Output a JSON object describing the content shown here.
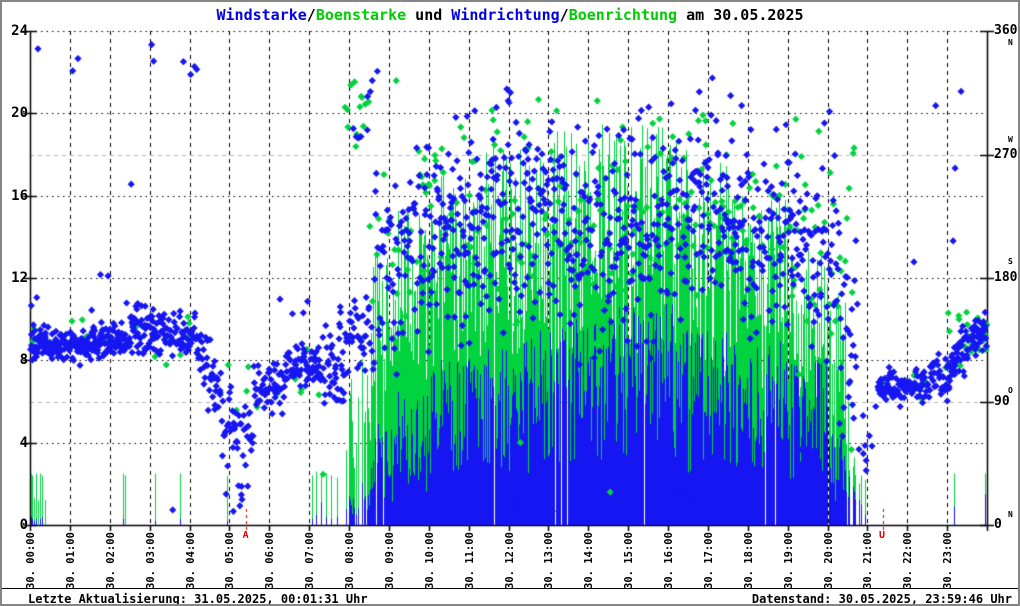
{
  "title": {
    "parts": [
      {
        "text": "Windstarke",
        "color": "#0202e0"
      },
      {
        "text": "/",
        "color": "#000000"
      },
      {
        "text": "Boenstarke",
        "color": "#00cc00"
      },
      {
        "text": " und ",
        "color": "#000000"
      },
      {
        "text": "Windrichtung",
        "color": "#0202e0"
      },
      {
        "text": "/",
        "color": "#000000"
      },
      {
        "text": "Boenrichtung",
        "color": "#00cc00"
      },
      {
        "text": " am 30.05.2025",
        "color": "#000000"
      }
    ]
  },
  "footer": {
    "left": "Letzte Aktualisierung: 31.05.2025, 00:01:31 Uhr",
    "right": "Datenstand: 30.05.2025, 23:59:46 Uhr"
  },
  "chart_data": {
    "type": "mixed",
    "title": "Windstarke/Boenstarke und Windrichtung/Boenrichtung am 30.05.2025",
    "colors": {
      "wind": "#1616f2",
      "gust": "#00d33e",
      "grid": "#000000",
      "grid_minor": "#b8b8b8",
      "sun": "#e00000"
    },
    "series": [
      {
        "name": "Windstarke",
        "style": "impulses",
        "axis": "left",
        "color": "#1616f2"
      },
      {
        "name": "Boenstarke",
        "style": "impulses",
        "axis": "left",
        "color": "#00d33e"
      },
      {
        "name": "Windrichtung",
        "style": "points",
        "axis": "right",
        "color": "#1616f2"
      },
      {
        "name": "Boenrichtung",
        "style": "points",
        "axis": "right",
        "color": "#00d33e"
      }
    ],
    "left_axis": {
      "min": 0,
      "max": 24,
      "ticks": [
        0,
        4,
        8,
        12,
        16,
        20,
        24
      ]
    },
    "right_axis": {
      "min": 0,
      "max": 360,
      "ticks": [
        0,
        90,
        180,
        270,
        360
      ],
      "gridlines": [
        90,
        270
      ],
      "compass": [
        {
          "label": "N",
          "deg": 360
        },
        {
          "label": "W",
          "deg": 270
        },
        {
          "label": "S",
          "deg": 180
        },
        {
          "label": "O",
          "deg": 90
        },
        {
          "label": "N",
          "deg": 0
        }
      ]
    },
    "x_labels": [
      "30. 00:00",
      "30. 01:00",
      "30. 02:00",
      "30. 03:00",
      "30. 04:00",
      "30. 05:00",
      "30. 06:00",
      "30. 07:00",
      "30. 08:00",
      "30. 09:00",
      "30. 10:00",
      "30. 11:00",
      "30. 12:00",
      "30. 13:00",
      "30. 14:00",
      "30. 15:00",
      "30. 16:00",
      "30. 17:00",
      "30. 18:00",
      "30. 19:00",
      "30. 20:00",
      "30. 21:00",
      "30. 22:00",
      "30. 23:00"
    ],
    "sun_markers": [
      {
        "label": "A",
        "hour": 5.42
      },
      {
        "label": "U",
        "hour": 21.38
      }
    ],
    "segment_format": {
      "wind_gust_segments": "[fromHour, toHour, windMin, windMax, gustMin, gustMax, densityPerMinute]",
      "gust_spikes": "[hour, gustValue, windValue]",
      "wind_dir_segments": "[fromHour, toHour, centerDeg, centerDegEnd|null, spreadDeg, densityPerMinute, outlierRate, outlierLoDeg, outlierHiDeg]",
      "gust_dir_segments": "[fromHour, toHour, centerDeg, centerDegEnd|null, spreadDeg, densityPerMinute]",
      "extra_points": "[hour, deg]"
    },
    "wind_gust_segments": [
      [
        7.9,
        8.3,
        0.2,
        1.5,
        2.5,
        8.5,
        0.5
      ],
      [
        8.3,
        8.6,
        0.5,
        3.0,
        4.0,
        10.0,
        0.7
      ],
      [
        8.6,
        9.2,
        1.0,
        5.0,
        6.0,
        13.5,
        0.9
      ],
      [
        9.2,
        10.0,
        1.5,
        6.5,
        7.0,
        15.5,
        1
      ],
      [
        10.0,
        11.0,
        2.0,
        8.0,
        7.5,
        17.0,
        1
      ],
      [
        11.0,
        12.5,
        2.5,
        9.0,
        8.0,
        18.5,
        1
      ],
      [
        12.5,
        14.5,
        3.0,
        10.0,
        8.0,
        19.8,
        1
      ],
      [
        14.5,
        16.5,
        3.0,
        10.8,
        8.0,
        19.5,
        1
      ],
      [
        16.5,
        17.5,
        2.5,
        9.5,
        7.0,
        17.8,
        1
      ],
      [
        17.5,
        19.0,
        2.5,
        9.0,
        6.5,
        16.0,
        1
      ],
      [
        19.0,
        20.0,
        2.0,
        8.0,
        5.0,
        13.5,
        1
      ],
      [
        20.0,
        20.45,
        1.0,
        5.0,
        3.0,
        11.5,
        0.9
      ],
      [
        20.45,
        20.8,
        0.3,
        2.5,
        1.5,
        6.0,
        0.5
      ]
    ],
    "gust_spikes": [
      [
        0.03,
        2.5,
        0.4
      ],
      [
        0.06,
        2.4,
        0.3
      ],
      [
        0.1,
        1.3,
        0.2
      ],
      [
        0.14,
        2.5,
        0.3
      ],
      [
        0.19,
        1.2,
        0
      ],
      [
        0.24,
        2.5,
        0.3
      ],
      [
        0.31,
        2.4,
        0.4
      ],
      [
        0.37,
        1.2,
        0
      ],
      [
        2.33,
        2.5,
        0.3
      ],
      [
        2.38,
        2.4,
        0
      ],
      [
        3.13,
        2.5,
        0.2
      ],
      [
        3.76,
        2.5,
        0.3
      ],
      [
        4.93,
        2.4,
        0.2
      ],
      [
        7.08,
        2.4,
        0.3
      ],
      [
        7.17,
        2.6,
        0.5
      ],
      [
        7.3,
        2.4,
        1.1
      ],
      [
        7.42,
        2.5,
        0.4
      ],
      [
        7.55,
        2.4,
        0.3
      ],
      [
        7.7,
        2.3,
        0.4
      ],
      [
        20.85,
        2.4,
        1.0
      ],
      [
        20.95,
        2.2,
        0.5
      ],
      [
        23.18,
        2.5,
        0.9
      ],
      [
        23.95,
        2.5,
        1.5
      ]
    ],
    "wind_dir_segments": [
      [
        0,
        0.5,
        133,
        null,
        9,
        1.6,
        0.04,
        150,
        175
      ],
      [
        0.5,
        1.5,
        131,
        null,
        8,
        1.6,
        0.02,
        300,
        345
      ],
      [
        1.5,
        2.5,
        133,
        null,
        10,
        1.6,
        0.03,
        155,
        215
      ],
      [
        2.5,
        3.3,
        141,
        null,
        13,
        1.4,
        0.03,
        200,
        345
      ],
      [
        3.3,
        4.2,
        138,
        null,
        14,
        1.2,
        0.02,
        320,
        350
      ],
      [
        4.2,
        4.85,
        125,
        85,
        18,
        1.1,
        0.03,
        30,
        55
      ],
      [
        4.85,
        5.6,
        72,
        null,
        20,
        1.0,
        0.08,
        8,
        40
      ],
      [
        5.6,
        6.4,
        102,
        null,
        14,
        1.1,
        0.02,
        140,
        165
      ],
      [
        6.4,
        7.3,
        117,
        null,
        11,
        1.3,
        0.02,
        145,
        165
      ],
      [
        7.3,
        7.9,
        113,
        null,
        32,
        1.3,
        0,
        0,
        0
      ],
      [
        7.9,
        8.6,
        142,
        null,
        24,
        1.2,
        0.15,
        280,
        345
      ],
      [
        8.6,
        9.5,
        195,
        null,
        52,
        1.0,
        0.05,
        330,
        358
      ],
      [
        9.5,
        11.0,
        215,
        null,
        56,
        1.1,
        0,
        0,
        0
      ],
      [
        11.0,
        13.5,
        225,
        null,
        60,
        1.15,
        0,
        0,
        0
      ],
      [
        13.5,
        16.0,
        212,
        null,
        62,
        1.15,
        0.02,
        5,
        40
      ],
      [
        16.0,
        18.0,
        232,
        null,
        55,
        1.1,
        0.02,
        10,
        45
      ],
      [
        18.0,
        19.5,
        215,
        null,
        55,
        1.05,
        0,
        0,
        0
      ],
      [
        19.5,
        20.3,
        195,
        null,
        58,
        1.0,
        0,
        0,
        0
      ],
      [
        20.3,
        20.75,
        140,
        null,
        55,
        0.9,
        0,
        0,
        0
      ],
      [
        20.75,
        21.25,
        80,
        null,
        32,
        0.25,
        0,
        0,
        0
      ],
      [
        21.25,
        22.6,
        102,
        null,
        9,
        1.1,
        0.03,
        140,
        230
      ],
      [
        22.6,
        23.1,
        108,
        null,
        12,
        1.1,
        0.05,
        260,
        330
      ],
      [
        23.1,
        24.0,
        122,
        142,
        13,
        1.3,
        0.02,
        170,
        210
      ]
    ],
    "gust_dir_segments": [
      [
        0,
        4.2,
        135,
        null,
        13,
        0.07
      ],
      [
        4.85,
        7.3,
        105,
        null,
        18,
        0.06
      ],
      [
        7.9,
        8.5,
        300,
        null,
        18,
        0.3
      ],
      [
        8.5,
        11.0,
        228,
        null,
        54,
        0.3
      ],
      [
        11.0,
        16.0,
        224,
        null,
        60,
        0.35
      ],
      [
        16.0,
        19.0,
        234,
        null,
        55,
        0.33
      ],
      [
        19.0,
        20.75,
        200,
        null,
        60,
        0.3
      ],
      [
        21.3,
        23.0,
        103,
        null,
        10,
        0.06
      ],
      [
        23.0,
        24.0,
        136,
        null,
        14,
        0.5
      ]
    ],
    "extra_wind_dir_points": [
      [
        3.58,
        11
      ],
      [
        0.2,
        347
      ],
      [
        1.07,
        331
      ],
      [
        3.05,
        350
      ],
      [
        3.1,
        338
      ],
      [
        5.1,
        10
      ],
      [
        5.3,
        22
      ],
      [
        20.9,
        52
      ],
      [
        20.97,
        47
      ],
      [
        21.05,
        65
      ],
      [
        23.15,
        207
      ],
      [
        23.2,
        260
      ],
      [
        23.35,
        316
      ],
      [
        12.2,
        15
      ],
      [
        13.1,
        10
      ],
      [
        14.9,
        20
      ],
      [
        16.3,
        24
      ],
      [
        11.4,
        8
      ],
      [
        17.7,
        25
      ],
      [
        18.3,
        40
      ],
      [
        19.3,
        55
      ],
      [
        10.2,
        42
      ]
    ],
    "extra_gust_dir_points": [
      [
        14.55,
        24
      ],
      [
        12.3,
        60
      ],
      [
        20.6,
        55
      ],
      [
        23.3,
        150
      ],
      [
        7.35,
        37
      ]
    ]
  }
}
